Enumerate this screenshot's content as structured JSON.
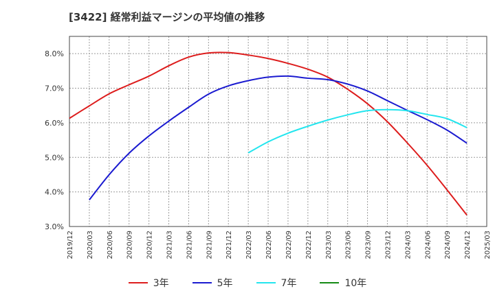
{
  "title": "[3422]  経常利益マージンの平均値の推移",
  "chart_data": {
    "type": "line",
    "title": "[3422]  経常利益マージンの平均値の推移",
    "xlabel": "",
    "ylabel": "",
    "ylim": [
      3.0,
      8.5
    ],
    "yticks": [
      "3.0%",
      "4.0%",
      "5.0%",
      "6.0%",
      "7.0%",
      "8.0%"
    ],
    "ytick_values": [
      3.0,
      4.0,
      5.0,
      6.0,
      7.0,
      8.0
    ],
    "categories": [
      "2019/12",
      "2020/03",
      "2020/06",
      "2020/09",
      "2020/12",
      "2021/03",
      "2021/06",
      "2021/09",
      "2021/12",
      "2022/03",
      "2022/06",
      "2022/09",
      "2022/12",
      "2023/03",
      "2023/06",
      "2023/09",
      "2023/12",
      "2024/03",
      "2024/06",
      "2024/09",
      "2024/12",
      "2025/03"
    ],
    "grid": true,
    "legend_position": "bottom",
    "series": [
      {
        "name": "3年",
        "color": "#dd1c1c",
        "values": [
          6.13,
          6.49,
          6.84,
          7.1,
          7.35,
          7.65,
          7.9,
          8.02,
          8.03,
          7.96,
          7.86,
          7.72,
          7.55,
          7.32,
          6.97,
          6.55,
          6.03,
          5.42,
          4.77,
          4.06,
          3.33,
          null
        ]
      },
      {
        "name": "5年",
        "color": "#1a1ad0",
        "values": [
          null,
          3.77,
          4.5,
          5.12,
          5.62,
          6.05,
          6.45,
          6.83,
          7.07,
          7.22,
          7.32,
          7.35,
          7.29,
          7.25,
          7.12,
          6.92,
          6.64,
          6.36,
          6.09,
          5.79,
          5.41,
          null
        ]
      },
      {
        "name": "7年",
        "color": "#22e5ee",
        "values": [
          null,
          null,
          null,
          null,
          null,
          null,
          null,
          null,
          null,
          5.13,
          5.45,
          5.7,
          5.9,
          6.08,
          6.23,
          6.35,
          6.38,
          6.35,
          6.24,
          6.12,
          5.86,
          null
        ]
      },
      {
        "name": "10年",
        "color": "#138a13",
        "values": [
          null,
          null,
          null,
          null,
          null,
          null,
          null,
          null,
          null,
          null,
          null,
          null,
          null,
          null,
          null,
          null,
          null,
          null,
          null,
          null,
          null,
          null
        ]
      }
    ]
  }
}
